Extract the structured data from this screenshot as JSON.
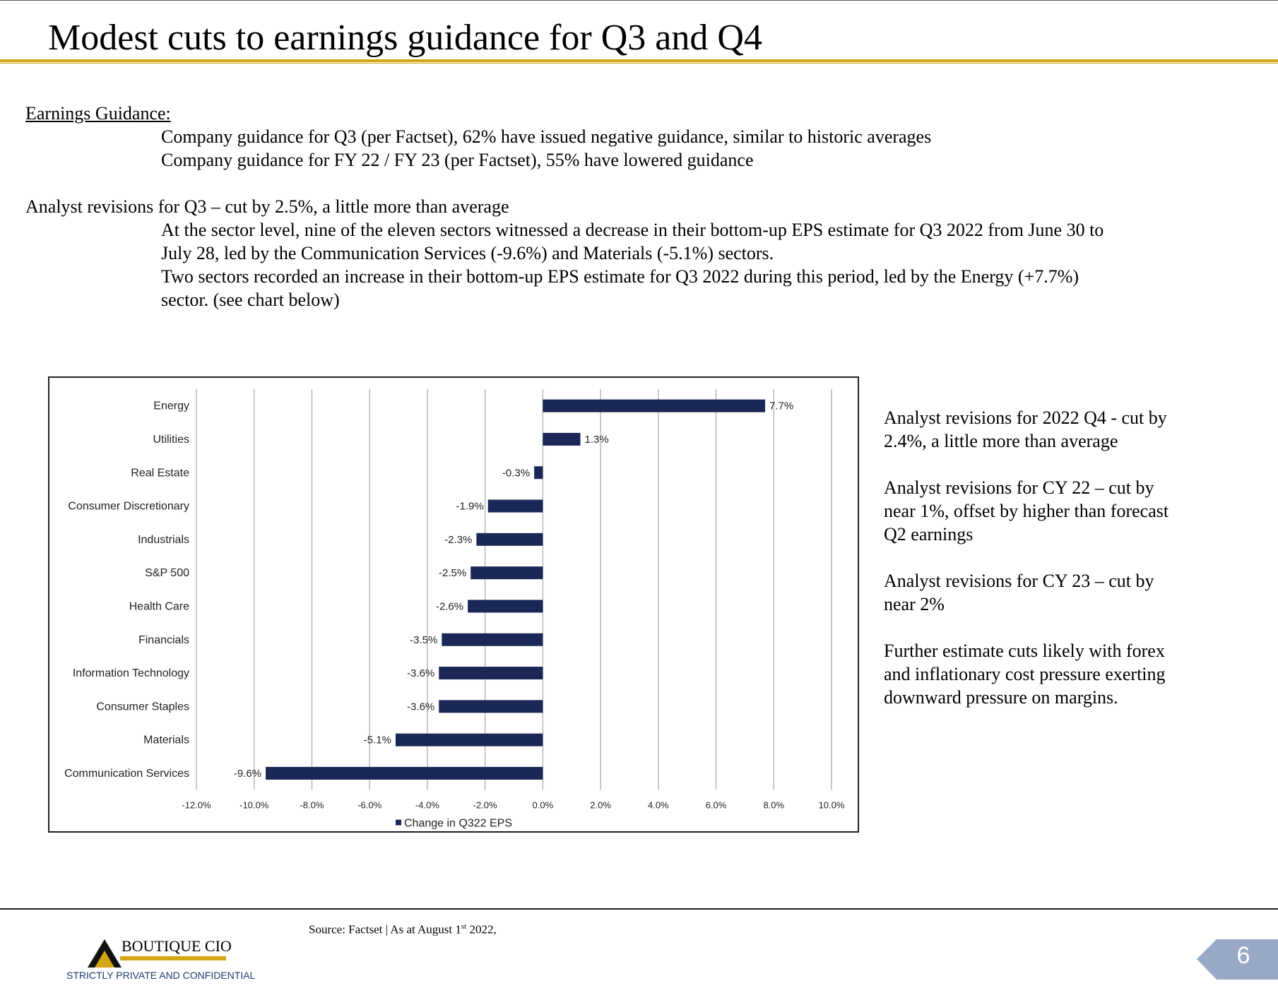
{
  "title": "Modest cuts to earnings guidance for Q3 and Q4",
  "guidance": {
    "heading": "Earnings Guidance:",
    "lines": [
      "Company guidance for Q3 (per Factset), 62% have issued negative guidance, similar to historic averages",
      "Company guidance for FY 22 / FY 23 (per Factset), 55% have lowered guidance"
    ]
  },
  "analyst": {
    "heading": "Analyst revisions for Q3 – cut by 2.5%, a little more than average",
    "lines": [
      "At the sector level, nine of the eleven sectors witnessed a decrease in their bottom-up EPS estimate for Q3 2022 from June 30 to",
      "July 28, led by the Communication Services (-9.6%) and Materials (-5.1%) sectors.",
      "Two sectors recorded an increase in their bottom-up EPS estimate for Q3 2022 during this period, led by the Energy (+7.7%)",
      "sector.  (see chart below)"
    ]
  },
  "sidebar": {
    "lines": [
      "Analyst revisions for 2022 Q4  - cut by",
      "2.4%, a little more than average",
      "Analyst revisions for CY 22 – cut by",
      "near 1%, offset by higher than forecast",
      "Q2 earnings",
      "Analyst revisions for CY 23 – cut by",
      "near 2%",
      "Further estimate cuts likely with forex",
      "and inflationary cost pressure exerting",
      "downward pressure on margins."
    ]
  },
  "chart_data": {
    "type": "bar",
    "orientation": "horizontal",
    "categories": [
      "Energy",
      "Utilities",
      "Real Estate",
      "Consumer Discretionary",
      "Industrials",
      "S&P 500",
      "Health Care",
      "Financials",
      "Information Technology",
      "Consumer Staples",
      "Materials",
      "Communication Services"
    ],
    "series": [
      {
        "name": "Change in Q322 EPS",
        "values": [
          7.7,
          1.3,
          -0.3,
          -1.9,
          -2.3,
          -2.5,
          -2.6,
          -3.5,
          -3.6,
          -3.6,
          -5.1,
          -9.6
        ],
        "labels": [
          "7.7%",
          "1.3%",
          "-0.3%",
          "-1.9%",
          "-2.3%",
          "-2.5%",
          "-2.6%",
          "-3.5%",
          "-3.6%",
          "-3.6%",
          "-5.1%",
          "-9.6%"
        ]
      }
    ],
    "xlim": [
      -12,
      10
    ],
    "xticks": [
      -12,
      -10,
      -8,
      -6,
      -4,
      -2,
      0,
      2,
      4,
      6,
      8,
      10
    ],
    "xtick_labels": [
      "-12.0%",
      "-10.0%",
      "-8.0%",
      "-6.0%",
      "-4.0%",
      "-2.0%",
      "0.0%",
      "2.0%",
      "4.0%",
      "6.0%",
      "8.0%",
      "10.0%"
    ],
    "grid": true,
    "legend": "bottom",
    "bar_color": "#1a2757"
  },
  "footer": {
    "source_prefix": "Source: Factset | As at August 1",
    "source_sup": "st",
    "source_suffix": " 2022,",
    "brand": "BOUTIQUE CIO",
    "tagline": "STRICTLY PRIVATE AND CONFIDENTIAL",
    "page_number": "6",
    "brand_color": "#d4a514",
    "badge_color": "#9aa8c8"
  }
}
